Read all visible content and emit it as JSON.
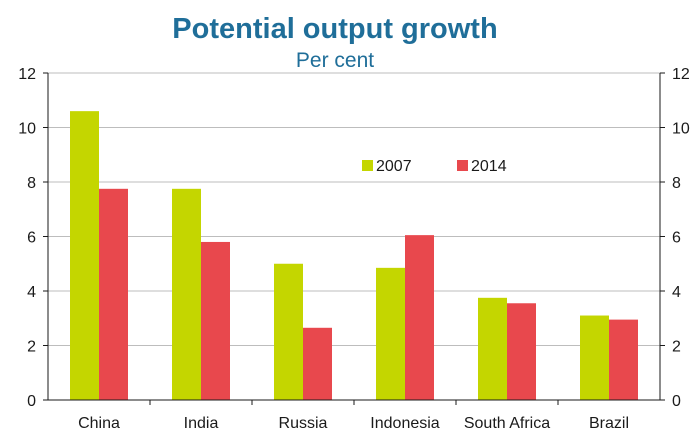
{
  "chart_data": {
    "type": "bar",
    "title": "Potential output growth",
    "subtitle": "Per cent",
    "categories": [
      "China",
      "India",
      "Russia",
      "Indonesia",
      "South Africa",
      "Brazil"
    ],
    "series": [
      {
        "name": "2007",
        "color": "#c4d600",
        "values": [
          10.6,
          7.75,
          5.0,
          4.85,
          3.75,
          3.1
        ]
      },
      {
        "name": "2014",
        "color": "#e8484d",
        "values": [
          7.75,
          5.8,
          2.65,
          6.05,
          3.55,
          2.95
        ]
      }
    ],
    "ylim": [
      0,
      12
    ],
    "yticks": [
      0,
      2,
      4,
      6,
      8,
      10,
      12
    ],
    "grid": true,
    "legend_position": "upper-right-inside",
    "axes": "left-and-right"
  }
}
